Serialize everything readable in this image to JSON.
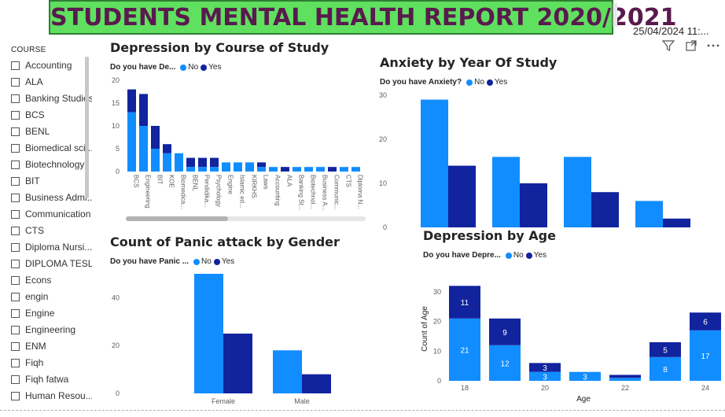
{
  "header": {
    "title": "STUDENTS MENTAL HEALTH REPORT 2020/2021",
    "date": "25/04/2024 11:..."
  },
  "colors": {
    "no": "#118dff",
    "yes": "#12239e",
    "title_bg": "#5fe05f",
    "title_text": "#5a1a4e"
  },
  "icons": [
    "filter-icon",
    "focus-mode-icon",
    "more-options-icon"
  ],
  "slicer": {
    "title": "COURSE",
    "items": [
      "Accounting",
      "ALA",
      "Banking Studies",
      "BCS",
      "BENL",
      "Biomedical sci...",
      "Biotechnology",
      "BIT",
      "Business Admi...",
      "Communication",
      "CTS",
      "Diploma Nursi...",
      "DIPLOMA TESL",
      "Econs",
      "engin",
      "Engine",
      "Engineering",
      "ENM",
      "Fiqh",
      "Fiqh fatwa",
      "Human Resou..."
    ]
  },
  "chart_data": [
    {
      "id": "depression_course",
      "type": "bar",
      "stacked": true,
      "title": "Depression by Course of Study",
      "title_color": "#8b2b46",
      "legend_title": "Do you have De...",
      "categories": [
        "BCS",
        "Engineering",
        "BIT",
        "KOE",
        "Biomedica...",
        "BENL",
        "Pendidika...",
        "Psychology",
        "Engine",
        "Islamic ed...",
        "KIRKHS",
        "Laws",
        "Accounting",
        "ALA",
        "Banking St...",
        "Biotechnol...",
        "Business A...",
        "Communic...",
        "CTS",
        "Diploma N..."
      ],
      "series": [
        {
          "name": "No",
          "values": [
            13,
            10,
            5,
            4,
            4,
            1,
            1,
            1,
            2,
            2,
            2,
            1,
            1,
            0,
            1,
            1,
            1,
            0,
            1,
            1
          ]
        },
        {
          "name": "Yes",
          "values": [
            5,
            7,
            5,
            2,
            0,
            2,
            2,
            2,
            0,
            0,
            0,
            1,
            0,
            1,
            0,
            0,
            0,
            1,
            0,
            0
          ]
        }
      ],
      "ylim": [
        0,
        20
      ],
      "yticks": [
        0,
        5,
        10,
        15,
        20
      ]
    },
    {
      "id": "anxiety_year",
      "type": "bar",
      "stacked": false,
      "title": "Anxiety by Year Of Study",
      "title_color": "#7a1d38",
      "legend_title": "Do you have Anxiety?",
      "categories": [
        "",
        "",
        "",
        ""
      ],
      "series": [
        {
          "name": "No",
          "values": [
            29,
            16,
            16,
            6
          ]
        },
        {
          "name": "Yes",
          "values": [
            14,
            10,
            8,
            2
          ]
        }
      ],
      "ylim": [
        0,
        30
      ],
      "yticks": [
        0,
        10,
        20,
        30
      ]
    },
    {
      "id": "panic_gender",
      "type": "bar",
      "stacked": false,
      "title": "Count of Panic attack by Gender",
      "title_color": "#5e5a17",
      "legend_title": "Do you have Panic ...",
      "categories": [
        "Female",
        "Male"
      ],
      "series": [
        {
          "name": "No",
          "values": [
            50,
            18
          ]
        },
        {
          "name": "Yes",
          "values": [
            25,
            8
          ]
        }
      ],
      "ylim": [
        0,
        50
      ],
      "yticks": [
        0,
        20,
        40
      ]
    },
    {
      "id": "depression_age",
      "type": "bar",
      "stacked": true,
      "title": "Depression by Age",
      "title_color": "#e8334e",
      "legend_title": "Do you have Depre...",
      "xlabel": "Age",
      "ylabel": "Count of Age",
      "x": [
        18,
        19,
        20,
        21,
        23,
        24
      ],
      "series": [
        {
          "name": "No",
          "values": [
            21,
            12,
            3,
            3,
            8,
            17
          ]
        },
        {
          "name": "Yes",
          "values": [
            11,
            9,
            3,
            0,
            5,
            6
          ]
        }
      ],
      "extra_bar": {
        "x": 22,
        "no": 1,
        "yes": 1
      },
      "xticks": [
        18,
        20,
        22,
        24
      ],
      "ylim": [
        0,
        35
      ],
      "yticks": [
        0,
        10,
        20,
        30
      ]
    }
  ]
}
